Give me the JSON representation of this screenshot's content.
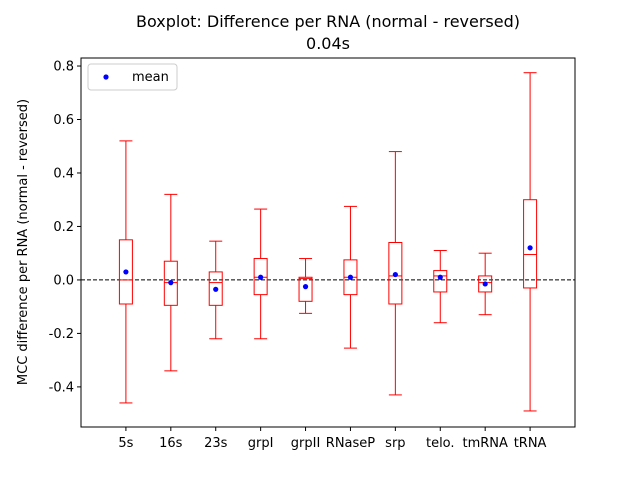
{
  "chart_data": {
    "type": "boxplot",
    "title": "Boxplot: Difference per RNA (normal - reversed)",
    "subtitle": "0.04s",
    "xlabel": "",
    "ylabel": "MCC difference per RNA (normal - reversed)",
    "ylim": [
      -0.55,
      0.83
    ],
    "yticks": [
      "-0.4",
      "-0.2",
      "0.0",
      "0.2",
      "0.4",
      "0.6",
      "0.8"
    ],
    "ytick_values": [
      -0.4,
      -0.2,
      0.0,
      0.2,
      0.4,
      0.6,
      0.8
    ],
    "reference_line": 0.0,
    "legend": {
      "label": "mean",
      "location": "top-left"
    },
    "colors": {
      "box": "#ff0000",
      "mean": "#0000ff",
      "reference": "#000000"
    },
    "categories": [
      "5s",
      "16s",
      "23s",
      "grpI",
      "grpII",
      "RNaseP",
      "srp",
      "telo.",
      "tmRNA",
      "tRNA"
    ],
    "boxes": [
      {
        "whisker_low": -0.46,
        "q1": -0.09,
        "median": 0.0,
        "q3": 0.15,
        "whisker_high": 0.52,
        "mean": 0.03
      },
      {
        "whisker_low": -0.34,
        "q1": -0.095,
        "median": -0.01,
        "q3": 0.07,
        "whisker_high": 0.32,
        "mean": -0.01
      },
      {
        "whisker_low": -0.22,
        "q1": -0.095,
        "median": -0.01,
        "q3": 0.03,
        "whisker_high": 0.145,
        "mean": -0.035
      },
      {
        "whisker_low": -0.22,
        "q1": -0.055,
        "median": 0.01,
        "q3": 0.08,
        "whisker_high": 0.265,
        "mean": 0.01
      },
      {
        "whisker_low": -0.125,
        "q1": -0.08,
        "median": 0.005,
        "q3": 0.01,
        "whisker_high": 0.08,
        "mean": -0.025
      },
      {
        "whisker_low": -0.255,
        "q1": -0.055,
        "median": 0.01,
        "q3": 0.075,
        "whisker_high": 0.275,
        "mean": 0.01
      },
      {
        "whisker_low": -0.43,
        "q1": -0.09,
        "median": 0.015,
        "q3": 0.14,
        "whisker_high": 0.48,
        "mean": 0.02
      },
      {
        "whisker_low": -0.16,
        "q1": -0.045,
        "median": 0.015,
        "q3": 0.035,
        "whisker_high": 0.11,
        "mean": 0.01
      },
      {
        "whisker_low": -0.13,
        "q1": -0.045,
        "median": -0.01,
        "q3": 0.015,
        "whisker_high": 0.1,
        "mean": -0.015
      },
      {
        "whisker_low": -0.49,
        "q1": -0.03,
        "median": 0.095,
        "q3": 0.3,
        "whisker_high": 0.775,
        "mean": 0.12
      }
    ]
  }
}
